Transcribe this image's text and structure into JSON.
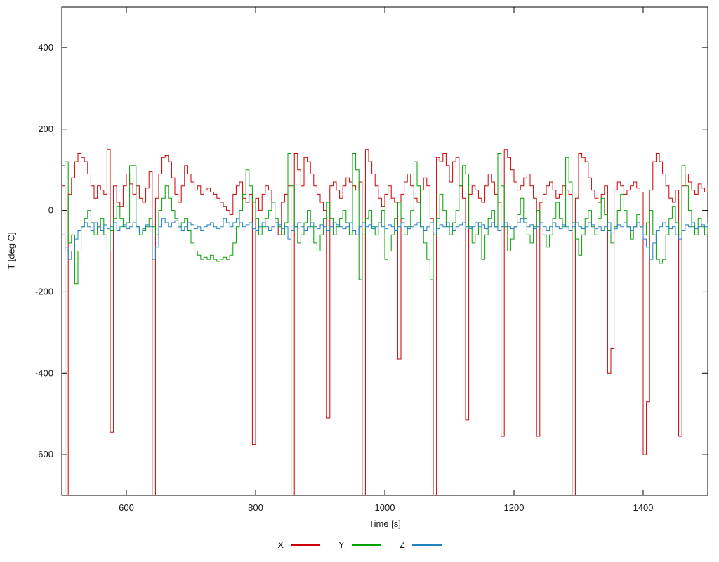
{
  "chart_data": {
    "type": "line",
    "title": "",
    "xlabel": "Time [s]",
    "ylabel": "T [deg C]",
    "xlim": [
      500,
      1500
    ],
    "ylim": [
      -700,
      500
    ],
    "xticks": [
      600,
      800,
      1000,
      1200,
      1400
    ],
    "yticks": [
      -600,
      -400,
      -200,
      0,
      200,
      400
    ],
    "grid": false,
    "legend_position": "bottom-center",
    "line_style": "steps",
    "x_start": 500,
    "x_step": 5,
    "series": [
      {
        "name": "X",
        "color": "#cc0000",
        "values": [
          60,
          -720,
          40,
          80,
          120,
          140,
          130,
          120,
          90,
          60,
          30,
          60,
          50,
          40,
          150,
          -545,
          60,
          20,
          10,
          60,
          90,
          65,
          40,
          60,
          30,
          20,
          55,
          95,
          -720,
          30,
          90,
          130,
          135,
          120,
          80,
          40,
          20,
          60,
          110,
          90,
          70,
          50,
          60,
          40,
          50,
          55,
          45,
          40,
          30,
          20,
          10,
          0,
          -10,
          40,
          60,
          70,
          30,
          20,
          40,
          -575,
          30,
          0,
          40,
          60,
          50,
          20,
          -30,
          -60,
          20,
          40,
          60,
          -720,
          140,
          100,
          60,
          130,
          120,
          90,
          60,
          40,
          20,
          0,
          -510,
          60,
          70,
          50,
          30,
          60,
          80,
          70,
          60,
          50,
          70,
          -720,
          150,
          120,
          90,
          60,
          30,
          10,
          40,
          60,
          30,
          20,
          -365,
          40,
          70,
          90,
          60,
          30,
          20,
          50,
          80,
          60,
          -20,
          -720,
          130,
          120,
          140,
          110,
          70,
          120,
          130,
          60,
          30,
          -515,
          40,
          60,
          50,
          30,
          20,
          60,
          90,
          70,
          40,
          20,
          -555,
          150,
          130,
          100,
          70,
          50,
          60,
          80,
          90,
          60,
          30,
          -555,
          20,
          40,
          60,
          70,
          50,
          30,
          40,
          60,
          50,
          40,
          -720,
          30,
          140,
          130,
          120,
          80,
          50,
          30,
          20,
          40,
          60,
          -400,
          -340,
          50,
          70,
          60,
          40,
          50,
          60,
          70,
          55,
          45,
          -600,
          -470,
          50,
          120,
          140,
          120,
          90,
          60,
          30,
          20,
          50,
          -555,
          60,
          90,
          70,
          50,
          40,
          65,
          55,
          45,
          60
        ]
      },
      {
        "name": "Y",
        "color": "#00a000",
        "values": [
          110,
          120,
          -80,
          -60,
          -180,
          -100,
          -40,
          -20,
          0,
          -30,
          -60,
          -40,
          -20,
          -60,
          -100,
          -50,
          -20,
          10,
          -20,
          -40,
          -30,
          110,
          110,
          -40,
          -60,
          -50,
          -40,
          -20,
          -40,
          -60,
          0,
          30,
          60,
          30,
          0,
          -20,
          -40,
          -30,
          -20,
          -50,
          -80,
          -100,
          -110,
          -120,
          -115,
          -120,
          -110,
          -120,
          -125,
          -120,
          -115,
          -120,
          -110,
          -80,
          -40,
          0,
          40,
          100,
          60,
          20,
          -20,
          -60,
          -40,
          -20,
          0,
          20,
          -20,
          -40,
          -60,
          -30,
          140,
          60,
          -40,
          -80,
          -60,
          -30,
          0,
          -40,
          -80,
          -100,
          -60,
          -20,
          20,
          -20,
          -60,
          -40,
          -20,
          0,
          -30,
          -60,
          140,
          100,
          -170,
          -60,
          -20,
          0,
          -40,
          -60,
          -30,
          0,
          -120,
          -100,
          -60,
          -20,
          20,
          -20,
          -60,
          -40,
          0,
          120,
          60,
          -40,
          -80,
          -120,
          -170,
          -60,
          -20,
          40,
          0,
          -40,
          -60,
          -30,
          0,
          60,
          110,
          90,
          -40,
          -80,
          -60,
          -30,
          -120,
          -60,
          -20,
          0,
          -40,
          140,
          60,
          -40,
          -100,
          -70,
          -40,
          -10,
          30,
          -20,
          -60,
          -80,
          -40,
          0,
          -30,
          -60,
          -90,
          -60,
          -20,
          20,
          -20,
          -40,
          130,
          70,
          -30,
          -70,
          -110,
          -60,
          -20,
          0,
          -40,
          -60,
          -20,
          30,
          -10,
          -50,
          -80,
          -40,
          0,
          40,
          0,
          -40,
          -70,
          -40,
          -10,
          -40,
          -60,
          -30,
          0,
          -60,
          -120,
          -130,
          -120,
          -60,
          -20,
          10,
          -30,
          -60,
          110,
          60,
          0,
          -40,
          -60,
          -20,
          -40,
          -60,
          -30
        ]
      },
      {
        "name": "Z",
        "color": "#2080c0",
        "values": [
          -60,
          -90,
          -120,
          -100,
          -70,
          -50,
          -40,
          -30,
          -40,
          -50,
          -30,
          -40,
          -50,
          -35,
          -45,
          -40,
          -30,
          -50,
          -40,
          -35,
          -45,
          -40,
          -30,
          -40,
          -55,
          -45,
          -35,
          -40,
          -120,
          -90,
          -40,
          -20,
          -30,
          -40,
          -30,
          -25,
          -40,
          -50,
          -40,
          -30,
          -35,
          -45,
          -40,
          -50,
          -40,
          -35,
          -30,
          -40,
          -45,
          -40,
          -20,
          -30,
          -40,
          -30,
          -20,
          -30,
          -40,
          -35,
          -30,
          -45,
          -50,
          -40,
          -30,
          -40,
          -50,
          -40,
          -30,
          -35,
          -45,
          -40,
          -70,
          -50,
          -40,
          -30,
          -40,
          -50,
          -40,
          -30,
          -40,
          -45,
          -35,
          -40,
          -50,
          -40,
          -30,
          -35,
          -40,
          -45,
          -40,
          -30,
          -50,
          -60,
          -40,
          -30,
          -40,
          -35,
          -45,
          -40,
          -30,
          -40,
          -45,
          -35,
          -40,
          -50,
          -40,
          -30,
          -40,
          -45,
          -40,
          -35,
          -30,
          -40,
          -50,
          -40,
          -30,
          -55,
          -45,
          -35,
          -40,
          -30,
          -40,
          -50,
          -40,
          -35,
          -30,
          -40,
          -45,
          -40,
          -30,
          -40,
          -35,
          -45,
          -40,
          -30,
          -40,
          -50,
          -40,
          -30,
          -40,
          -45,
          -40,
          -30,
          -20,
          -30,
          -40,
          -35,
          -45,
          -40,
          -30,
          -40,
          -50,
          -40,
          -30,
          -40,
          -45,
          -35,
          -40,
          -50,
          -40,
          -30,
          -40,
          -45,
          -40,
          -30,
          -35,
          -45,
          -40,
          -50,
          -40,
          -30,
          -55,
          -45,
          -35,
          -40,
          -30,
          -40,
          -50,
          -40,
          -30,
          -40,
          -70,
          -90,
          -120,
          -80,
          -50,
          -40,
          -30,
          -40,
          -45,
          -40,
          -60,
          -70,
          -50,
          -35,
          -40,
          -30,
          -45,
          -40,
          -35,
          -40,
          -30
        ]
      }
    ]
  }
}
